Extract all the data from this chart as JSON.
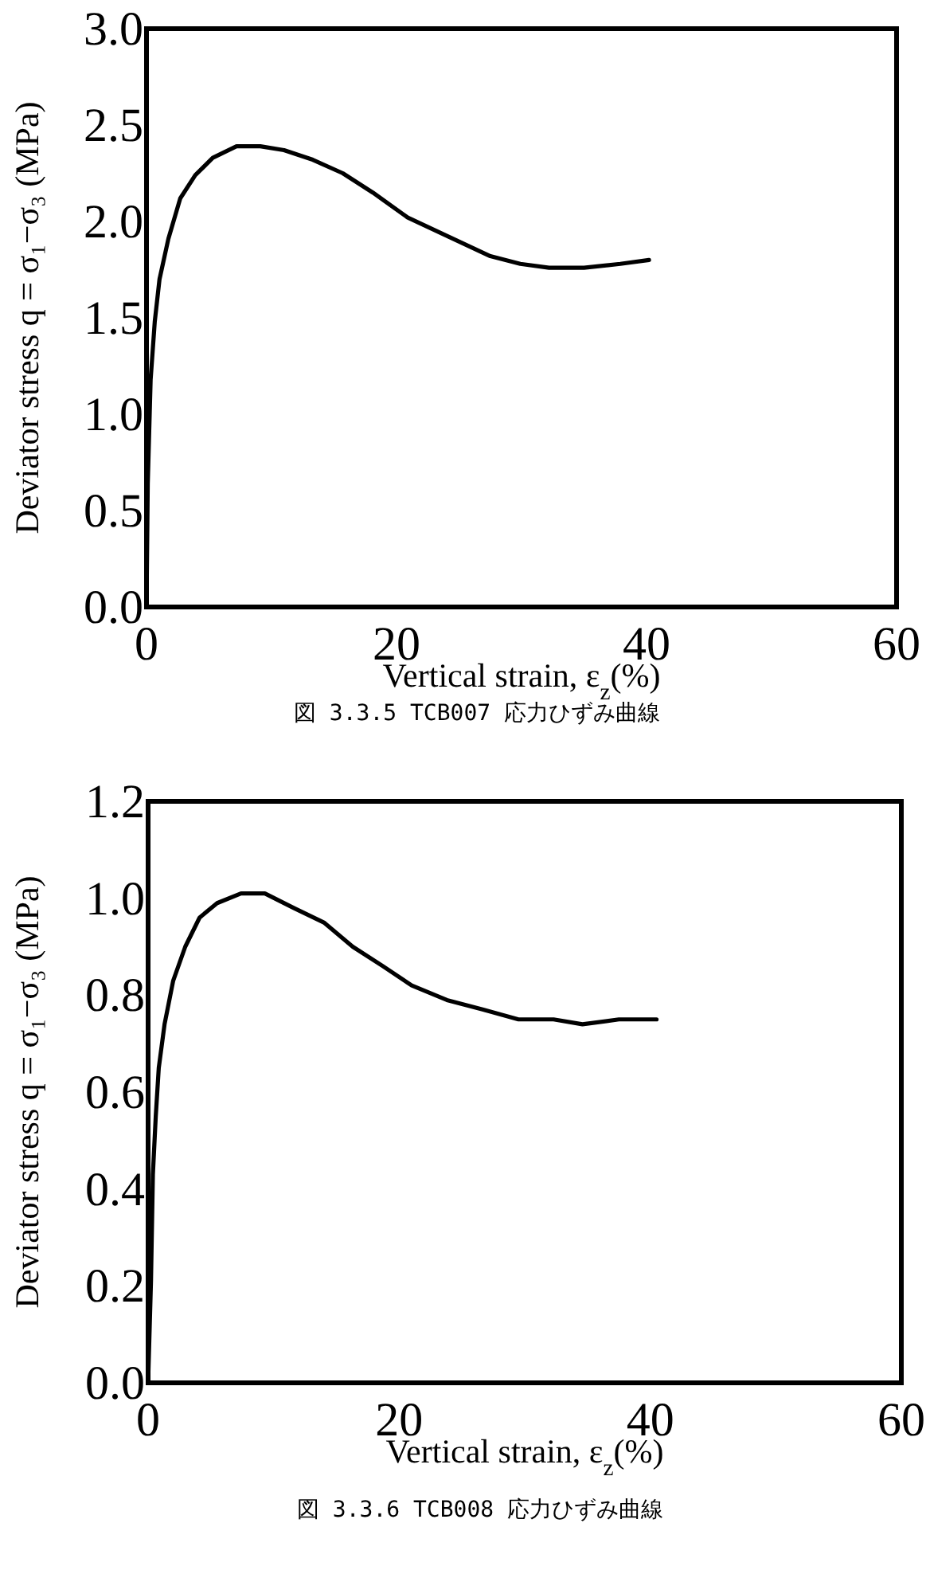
{
  "chart_data": [
    {
      "type": "line",
      "title": "図 3.3.5 TCB007 応力ひずみ曲線",
      "xlabel": "Vertical strain, ε$_{z}$(%)",
      "ylabel": "Deviator stress q = σ₁−σ₃ (MPa)",
      "xlim": [
        0,
        60
      ],
      "xticks": [
        0,
        20,
        40,
        60
      ],
      "ylim": [
        0,
        3.0
      ],
      "yticks": [
        {
          "value": 0,
          "label": "0.0"
        },
        0.5,
        {
          "value": 1,
          "label": "1.0"
        },
        1.5,
        {
          "value": 2,
          "label": "2.0"
        },
        2.5,
        {
          "value": 3,
          "label": "3.0"
        }
      ],
      "grid": false,
      "series": [
        {
          "color": "#000000",
          "x": [
            0,
            0.1,
            0.33,
            0.66,
            1.04,
            1.75,
            2.7,
            3.9,
            5.3,
            7.2,
            9.1,
            11.0,
            13.3,
            15.7,
            18.1,
            20.9,
            24.2,
            27.5,
            29.9,
            32.2,
            35.0,
            37.9,
            40.2
          ],
          "values": [
            0,
            0.64,
            1.18,
            1.48,
            1.7,
            1.91,
            2.12,
            2.24,
            2.33,
            2.39,
            2.39,
            2.37,
            2.32,
            2.25,
            2.15,
            2.02,
            1.92,
            1.82,
            1.78,
            1.76,
            1.76,
            1.78,
            1.8
          ]
        }
      ]
    },
    {
      "type": "line",
      "title": "図 3.3.6 TCB008 応力ひずみ曲線",
      "xlabel": "Vertical strain, ε$_{z}$(%)",
      "ylabel": "Deviator stress q = σ₁−σ₃ (MPa)",
      "xlim": [
        0,
        60
      ],
      "xticks": [
        0,
        20,
        40,
        60
      ],
      "ylim": [
        0,
        1.2
      ],
      "yticks": [
        {
          "value": 0,
          "label": "0.0"
        },
        0.2,
        0.4,
        0.6,
        0.8,
        {
          "value": 1,
          "label": "1.0"
        },
        1.2
      ],
      "grid": false,
      "series": [
        {
          "color": "#000000",
          "x": [
            0,
            0.23,
            0.38,
            0.61,
            0.85,
            1.31,
            2.0,
            2.96,
            4.1,
            5.5,
            7.4,
            9.3,
            11.6,
            14.0,
            16.3,
            18.7,
            21.0,
            23.8,
            26.7,
            29.5,
            32.3,
            34.6,
            37.5,
            40.5
          ],
          "values": [
            0,
            0.21,
            0.43,
            0.55,
            0.65,
            0.74,
            0.83,
            0.9,
            0.96,
            0.99,
            1.01,
            1.01,
            0.98,
            0.95,
            0.9,
            0.86,
            0.82,
            0.79,
            0.77,
            0.75,
            0.75,
            0.74,
            0.75,
            0.75
          ]
        }
      ]
    }
  ]
}
